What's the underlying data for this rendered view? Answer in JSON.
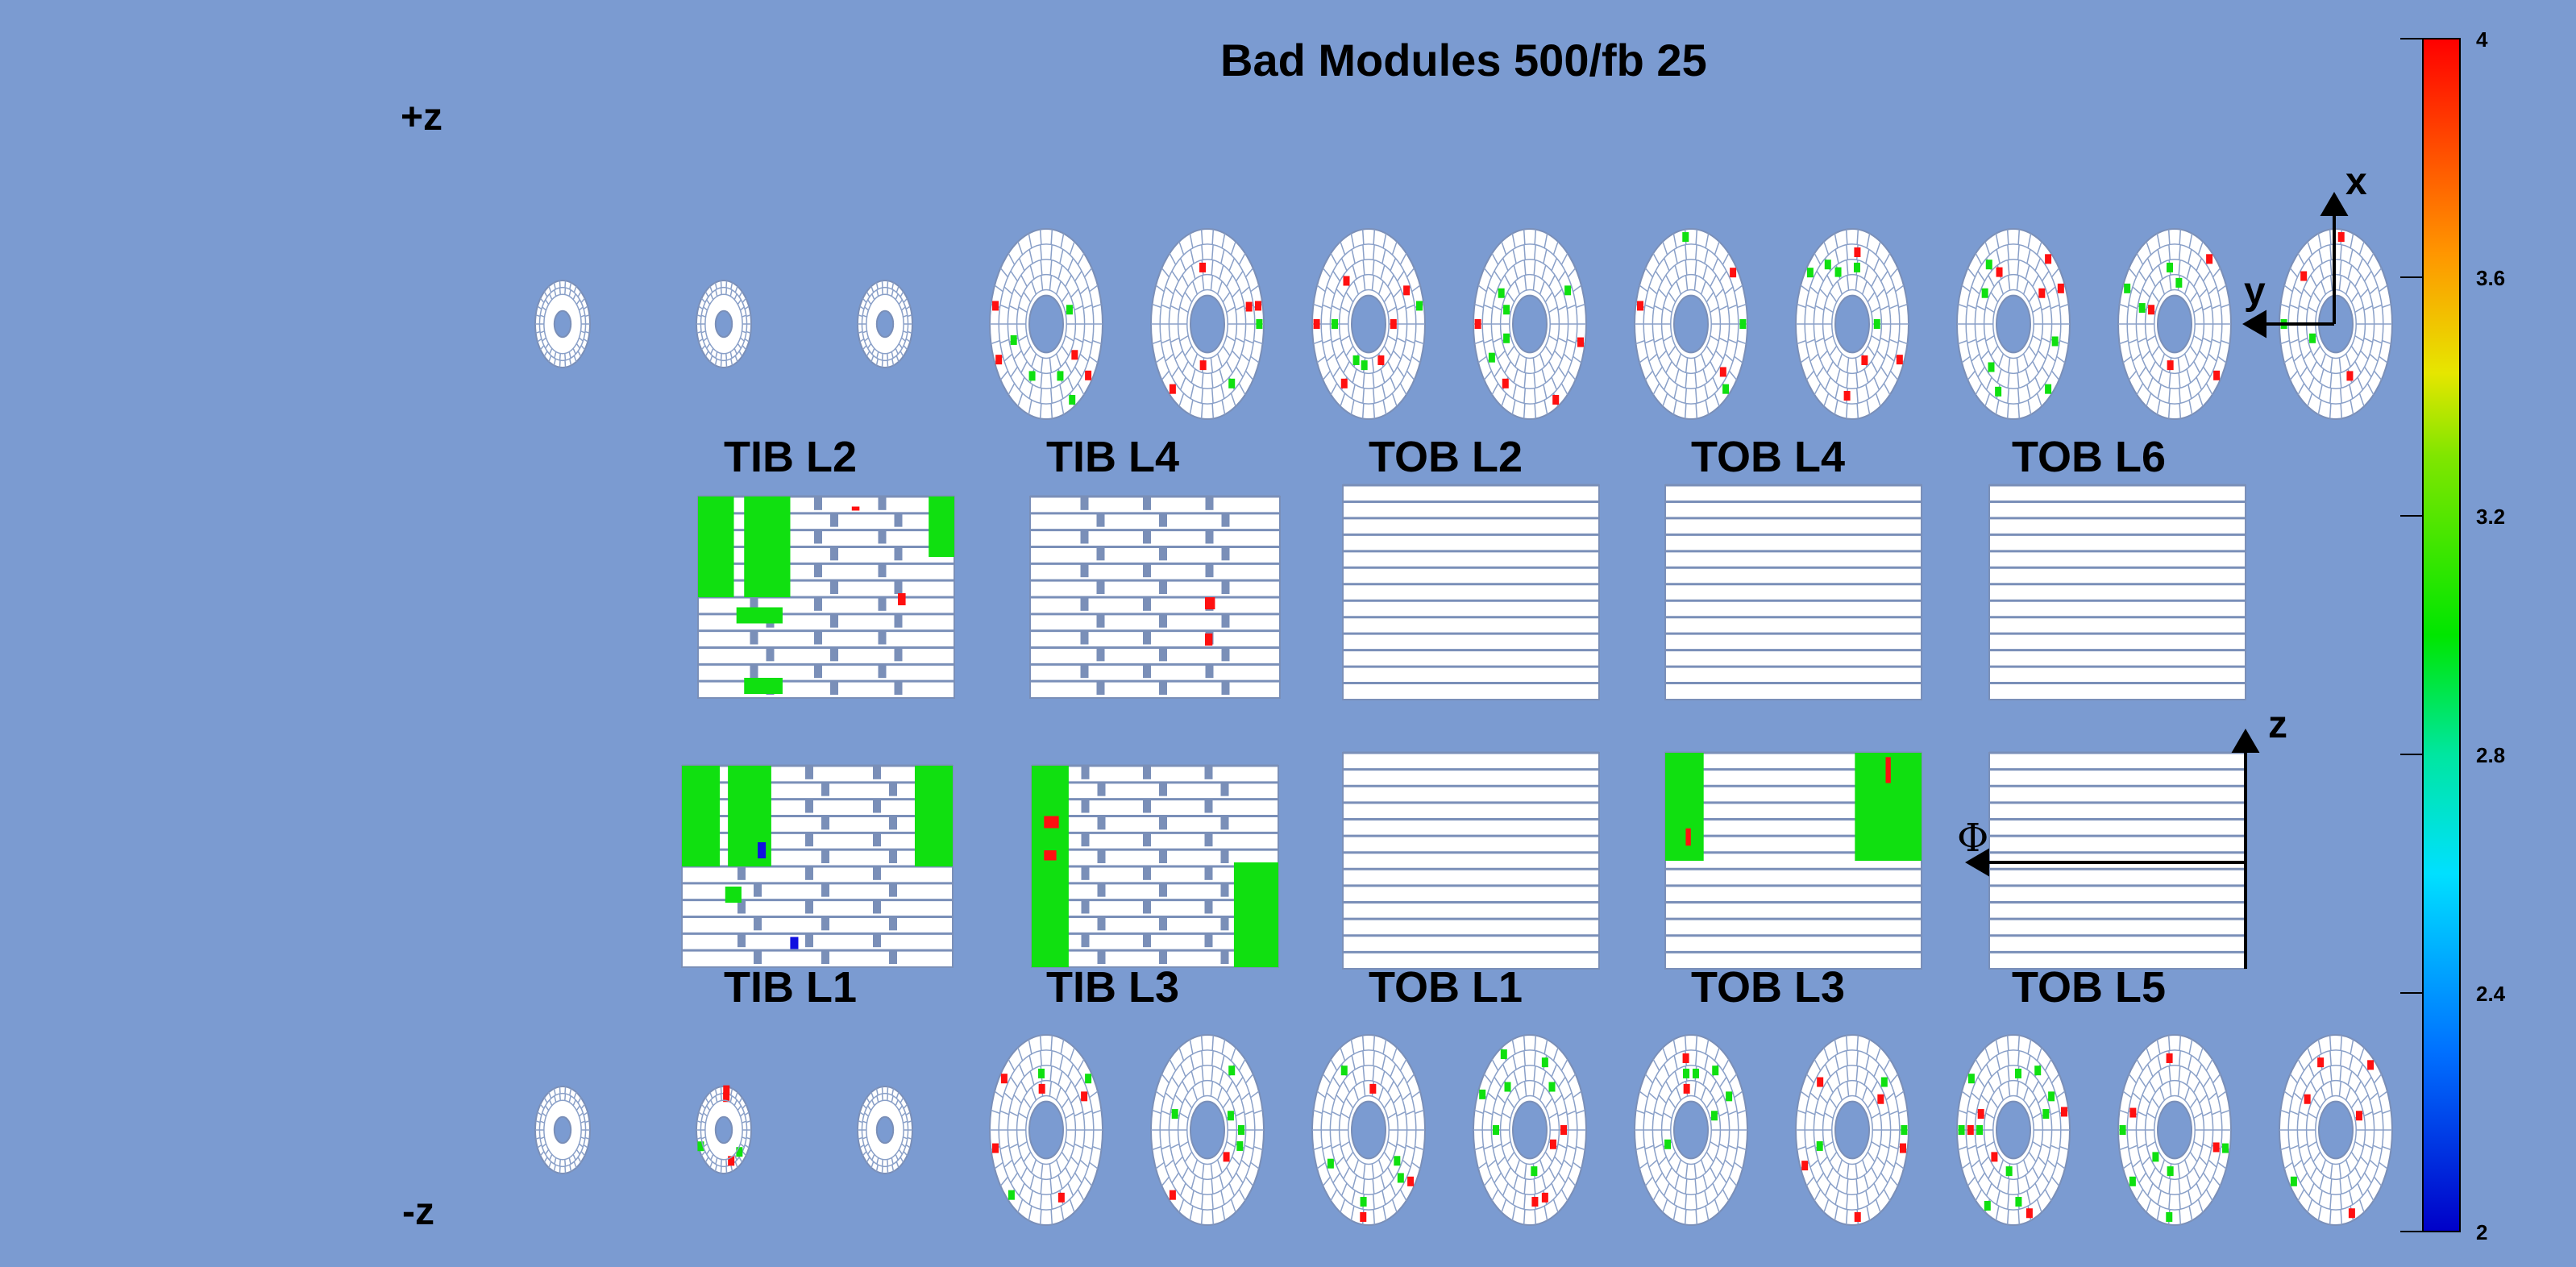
{
  "title": "Bad Modules 500/fb 25",
  "z_plus": "+z",
  "z_minus": "-z",
  "axes_top": {
    "x": "x",
    "y": "y"
  },
  "axes_barrel": {
    "z": "z",
    "phi": "Φ"
  },
  "barrel_layers_top": [
    "TIB L2",
    "TIB L4",
    "TOB L2",
    "TOB L4",
    "TOB L6"
  ],
  "barrel_layers_bottom": [
    "TIB L1",
    "TIB L3",
    "TOB L1",
    "TOB L3",
    "TOB L5"
  ],
  "colorbar": {
    "min": 2,
    "max": 4,
    "ticks": [
      "4",
      "3.6",
      "3.2",
      "2.8",
      "2.4",
      "2"
    ]
  }
}
